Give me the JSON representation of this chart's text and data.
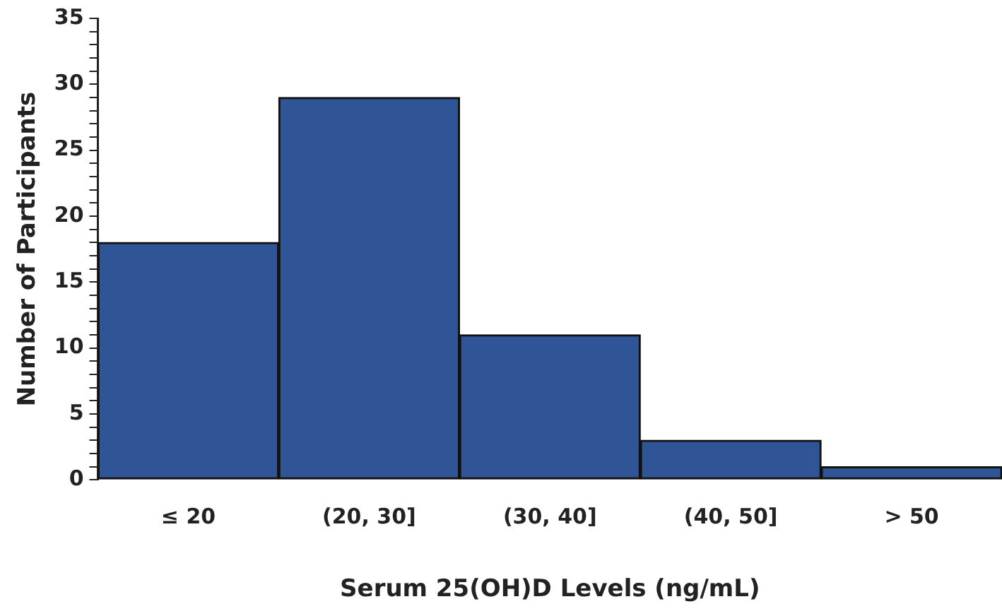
{
  "chart_data": {
    "type": "bar",
    "xlabel": "Serum 25(OH)D Levels (ng/mL)",
    "ylabel": "Number of Participants",
    "categories": [
      "≤ 20",
      "(20, 30]",
      "(30, 40]",
      "(40, 50]",
      "> 50"
    ],
    "values": [
      18,
      29,
      11,
      3,
      1
    ],
    "color": "#2f5597",
    "ylim": [
      0,
      35
    ],
    "yticks": [
      0,
      {
        "value": 1,
        "label": null
      },
      {
        "value": 2,
        "label": null
      },
      {
        "value": 3,
        "label": null
      },
      {
        "value": 4,
        "label": null
      },
      5,
      {
        "value": 6,
        "label": null
      },
      {
        "value": 7,
        "label": null
      },
      {
        "value": 8,
        "label": null
      },
      {
        "value": 9,
        "label": null
      },
      10,
      {
        "value": 11,
        "label": null
      },
      {
        "value": 12,
        "label": null
      },
      {
        "value": 13,
        "label": null
      },
      {
        "value": 14,
        "label": null
      },
      15,
      {
        "value": 16,
        "label": null
      },
      {
        "value": 17,
        "label": null
      },
      {
        "value": 18,
        "label": null
      },
      {
        "value": 19,
        "label": null
      },
      20,
      {
        "value": 21,
        "label": null
      },
      {
        "value": 22,
        "label": null
      },
      {
        "value": 23,
        "label": null
      },
      {
        "value": 24,
        "label": null
      },
      25,
      {
        "value": 26,
        "label": null
      },
      {
        "value": 27,
        "label": null
      },
      {
        "value": 28,
        "label": null
      },
      {
        "value": 29,
        "label": null
      },
      30,
      {
        "value": 31,
        "label": null
      },
      {
        "value": 32,
        "label": null
      },
      {
        "value": 33,
        "label": null
      },
      {
        "value": 34,
        "label": null
      },
      35
    ],
    "grid": false,
    "legend": false
  }
}
